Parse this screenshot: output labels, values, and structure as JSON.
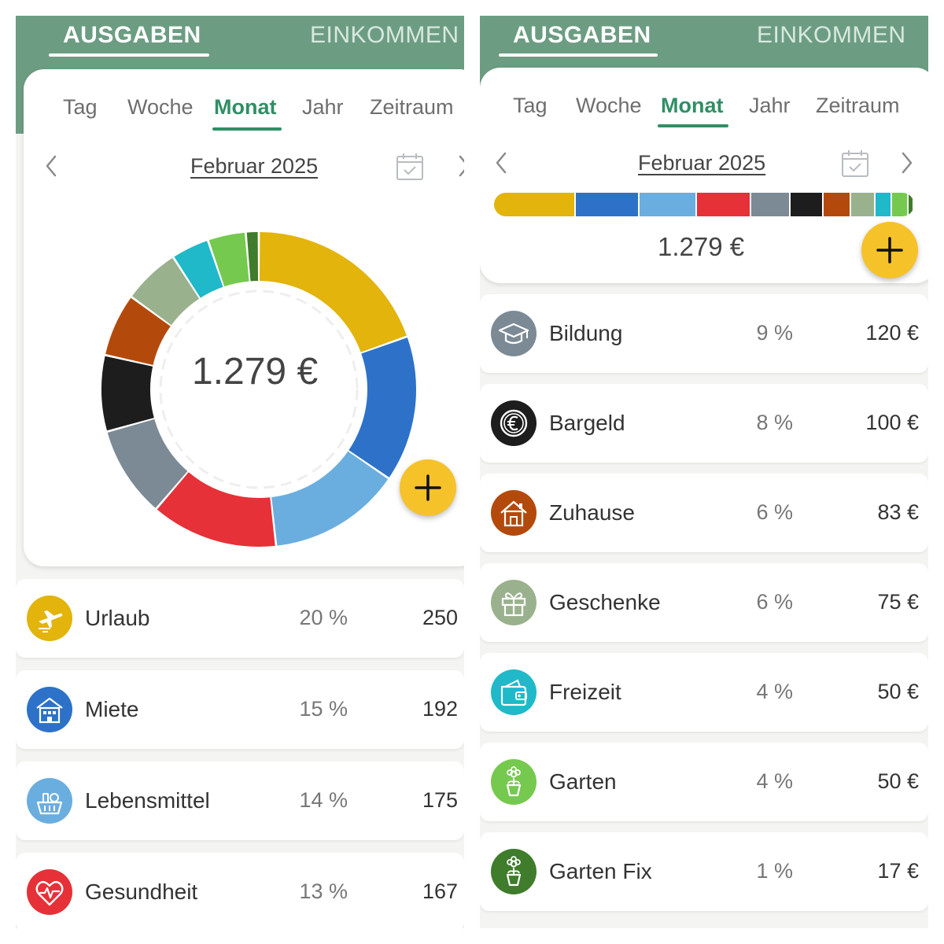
{
  "header": {
    "tab_expenses": "AUSGABEN",
    "tab_income": "EINKOMMEN"
  },
  "periods": {
    "day": "Tag",
    "week": "Woche",
    "month": "Monat",
    "year": "Jahr",
    "range": "Zeitraum"
  },
  "date_label": "Februar 2025",
  "total": "1.279 €",
  "colors": {
    "header": "#6c9d82",
    "accent": "#2f8f64",
    "fab": "#f5c22a"
  },
  "chart_data": {
    "type": "pie",
    "categories": [
      "Urlaub",
      "Miete",
      "Lebensmittel",
      "Gesundheit",
      "Bildung",
      "Bargeld",
      "Zuhause",
      "Geschenke",
      "Freizeit",
      "Garten",
      "Garten Fix"
    ],
    "values": [
      250,
      192,
      175,
      167,
      120,
      100,
      83,
      75,
      50,
      50,
      17
    ],
    "colors": [
      "#e2b40c",
      "#2d72c8",
      "#6aaedf",
      "#e53137",
      "#7c8a95",
      "#1d1d1d",
      "#b34a0c",
      "#9ab18d",
      "#1fb9c9",
      "#76c94f",
      "#3f7c2b"
    ]
  },
  "left_rows": [
    {
      "name": "Urlaub",
      "pct": "20 %",
      "amount": "250",
      "icon": "airplane-icon",
      "color": "#e2b40c"
    },
    {
      "name": "Miete",
      "pct": "15 %",
      "amount": "192",
      "icon": "building-icon",
      "color": "#2d72c8"
    },
    {
      "name": "Lebensmittel",
      "pct": "14 %",
      "amount": "175",
      "icon": "grocery-basket-icon",
      "color": "#6aaedf"
    },
    {
      "name": "Gesundheit",
      "pct": "13 %",
      "amount": "167",
      "icon": "heart-pulse-icon",
      "color": "#e53137"
    }
  ],
  "right_rows": [
    {
      "name": "Bildung",
      "pct": "9 %",
      "amount": "120 €",
      "icon": "graduation-cap-icon",
      "color": "#7c8a95"
    },
    {
      "name": "Bargeld",
      "pct": "8 %",
      "amount": "100 €",
      "icon": "euro-coin-icon",
      "color": "#1d1d1d"
    },
    {
      "name": "Zuhause",
      "pct": "6 %",
      "amount": "83 €",
      "icon": "house-icon",
      "color": "#b34a0c"
    },
    {
      "name": "Geschenke",
      "pct": "6 %",
      "amount": "75 €",
      "icon": "gift-icon",
      "color": "#9ab18d"
    },
    {
      "name": "Freizeit",
      "pct": "4 %",
      "amount": "50 €",
      "icon": "wallet-icon",
      "color": "#1fb9c9"
    },
    {
      "name": "Garten",
      "pct": "4 %",
      "amount": "50 €",
      "icon": "flower-pot-icon",
      "color": "#76c94f"
    },
    {
      "name": "Garten Fix",
      "pct": "1 %",
      "amount": "17 €",
      "icon": "flower-pot-icon",
      "color": "#3f7c2b"
    }
  ]
}
